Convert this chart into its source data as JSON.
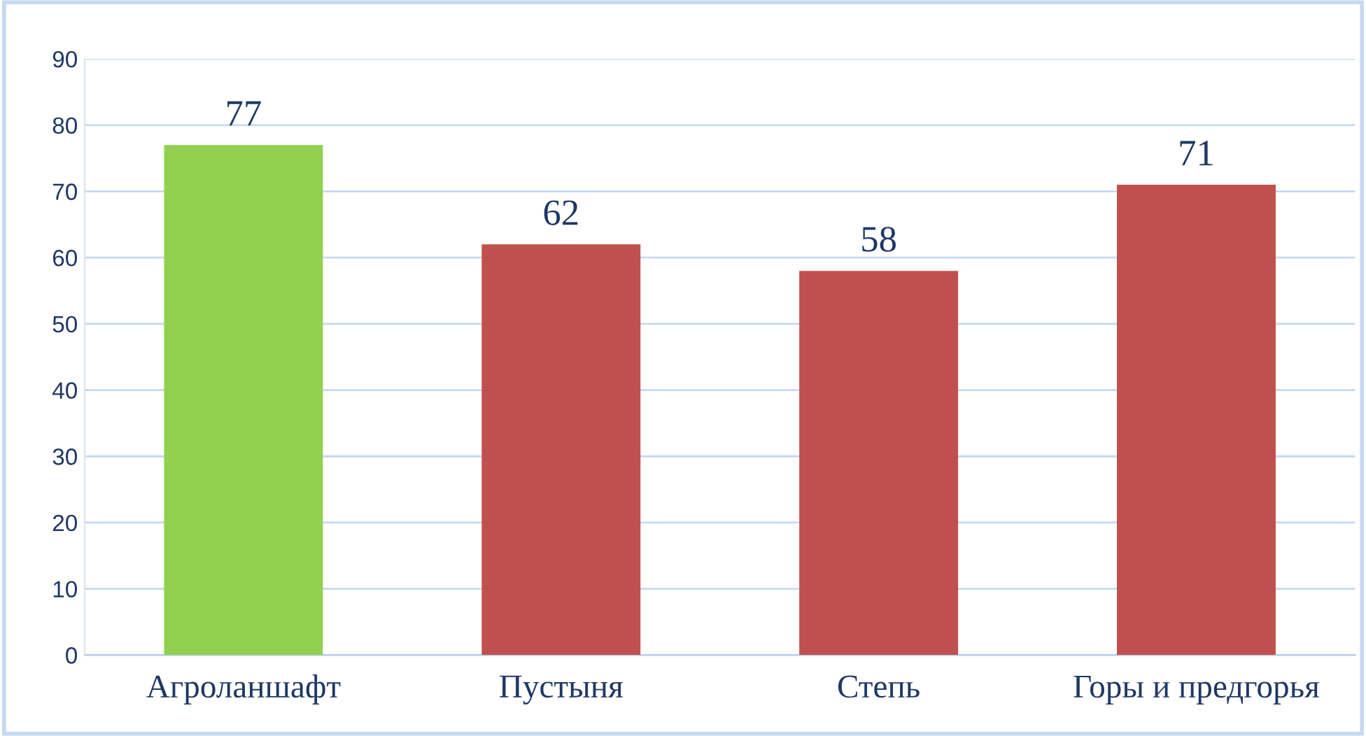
{
  "chart_data": {
    "type": "bar",
    "categories": [
      "Агроланшафт",
      "Пустыня",
      "Степь",
      "Горы и предгорья"
    ],
    "values": [
      77,
      62,
      58,
      71
    ],
    "colors": [
      "#92d050",
      "#c0504d",
      "#c0504d",
      "#c0504d"
    ],
    "ylim": [
      0,
      90
    ],
    "yticks": [
      0,
      10,
      20,
      30,
      40,
      50,
      60,
      70,
      80,
      90
    ],
    "grid": "y",
    "data_labels": true
  }
}
